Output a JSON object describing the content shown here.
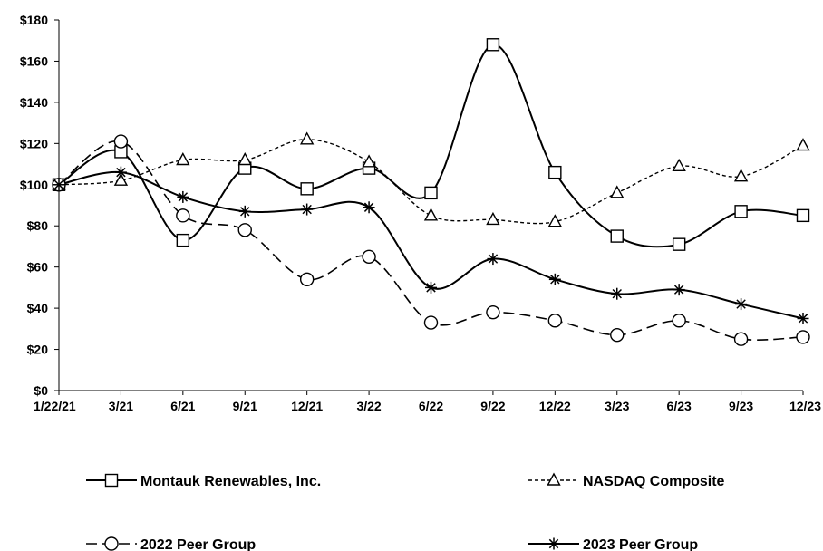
{
  "chart_data": {
    "type": "line",
    "categories": [
      "1/22/21",
      "3/21",
      "6/21",
      "9/21",
      "12/21",
      "3/22",
      "6/22",
      "9/22",
      "12/22",
      "3/23",
      "6/23",
      "9/23",
      "12/23"
    ],
    "y_tick_labels": [
      "$0",
      "$20",
      "$40",
      "$60",
      "$80",
      "$100",
      "$120",
      "$140",
      "$160",
      "$180"
    ],
    "ylim": [
      0,
      180
    ],
    "grid": false,
    "legend_position": "bottom",
    "series": [
      {
        "name": "Montauk Renewables, Inc.",
        "marker": "square",
        "dash": "solid",
        "values": [
          100,
          116,
          73,
          108,
          98,
          108,
          96,
          168,
          106,
          75,
          71,
          87,
          85
        ]
      },
      {
        "name": "NASDAQ Composite",
        "marker": "triangle",
        "dash": "dotted",
        "values": [
          100,
          102,
          112,
          112,
          122,
          111,
          85,
          83,
          82,
          96,
          109,
          104,
          119
        ]
      },
      {
        "name": "2022 Peer Group",
        "marker": "circle",
        "dash": "dashed",
        "values": [
          100,
          121,
          85,
          78,
          54,
          65,
          33,
          38,
          34,
          27,
          34,
          25,
          26
        ]
      },
      {
        "name": "2023 Peer Group",
        "marker": "asterisk",
        "dash": "solid",
        "values": [
          100,
          106,
          94,
          87,
          88,
          89,
          50,
          64,
          54,
          47,
          49,
          42,
          35
        ]
      }
    ]
  }
}
